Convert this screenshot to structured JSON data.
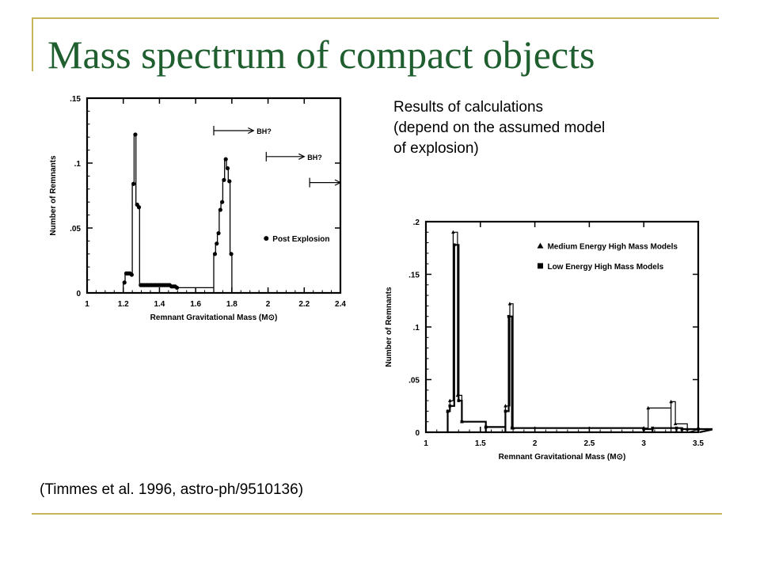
{
  "slide": {
    "title": "Mass spectrum of compact objects",
    "notes": [
      "Results of calculations",
      "(depend on the assumed model",
      "of explosion)"
    ],
    "citation": "(Timmes et al. 1996, astro-ph/9510136)",
    "accent_color": "#c8b45a",
    "title_color": "#1f5e2e"
  },
  "chart_data": [
    {
      "type": "line",
      "xlabel": "Remnant  Gravitational  Mass  (M⊙)",
      "ylabel": "Number of Remnants",
      "xlim": [
        1,
        2.4
      ],
      "ylim": [
        0,
        0.15
      ],
      "xticks": [
        "1",
        "1.2",
        "1.4",
        "1.6",
        "1.8",
        "2",
        "2.2",
        "2.4"
      ],
      "yticks": [
        "0",
        ".05",
        ".1",
        ".15"
      ],
      "legend": [
        {
          "label": "Post Explosion",
          "marker": "circle"
        }
      ],
      "annotations": [
        {
          "text": "BH?",
          "x_start": 1.7,
          "x_end": 1.92,
          "y": 0.125
        },
        {
          "text": "BH?",
          "x_start": 1.99,
          "x_end": 2.2,
          "y": 0.105
        },
        {
          "text": "",
          "x_start": 2.23,
          "x_end": 2.4,
          "y": 0.085
        }
      ],
      "series": [
        {
          "x": [
            1.2,
            1.21,
            1.22,
            1.23,
            1.24,
            1.25,
            1.26,
            1.27,
            1.28,
            1.29,
            1.3,
            1.31,
            1.32,
            1.33,
            1.34,
            1.35,
            1.36,
            1.37,
            1.38,
            1.39,
            1.4,
            1.41,
            1.42,
            1.43,
            1.44,
            1.45,
            1.46,
            1.47,
            1.48,
            1.49,
            1.7,
            1.71,
            1.72,
            1.73,
            1.74,
            1.75,
            1.76,
            1.77,
            1.78,
            1.79
          ],
          "y": [
            0.008,
            0.015,
            0.015,
            0.015,
            0.014,
            0.084,
            0.122,
            0.068,
            0.066,
            0.006,
            0.006,
            0.006,
            0.006,
            0.006,
            0.006,
            0.006,
            0.006,
            0.006,
            0.006,
            0.006,
            0.006,
            0.006,
            0.006,
            0.006,
            0.006,
            0.006,
            0.005,
            0.005,
            0.005,
            0.004,
            0.03,
            0.038,
            0.046,
            0.064,
            0.07,
            0.087,
            0.103,
            0.096,
            0.086,
            0.03
          ]
        }
      ]
    },
    {
      "type": "line",
      "xlabel": "Remnant  Gravitational  Mass  (M⊙)",
      "ylabel": "Number of Remnants",
      "xlim": [
        1,
        3.5
      ],
      "ylim": [
        0,
        0.2
      ],
      "xticks": [
        "1",
        "1.5",
        "2",
        "2.5",
        "3",
        "3.5"
      ],
      "yticks": [
        "0",
        ".05",
        ".1",
        ".15",
        ".2"
      ],
      "legend": [
        {
          "label": "Medium Energy High Mass Models",
          "marker": "triangle"
        },
        {
          "label": "Low Energy High Mass Models",
          "marker": "square"
        }
      ],
      "series": [
        {
          "name": "Medium Energy High Mass Models",
          "x": [
            1.2,
            1.22,
            1.25,
            1.29,
            1.33,
            1.55,
            1.73,
            1.77,
            1.8,
            3.0,
            3.04,
            3.25,
            3.29,
            3.4
          ],
          "y": [
            0.02,
            0.03,
            0.19,
            0.035,
            0.01,
            0.005,
            0.025,
            0.122,
            0.004,
            0.004,
            0.023,
            0.029,
            0.008,
            0.003
          ]
        },
        {
          "name": "Low Energy High Mass Models",
          "x": [
            1.2,
            1.22,
            1.26,
            1.3,
            1.33,
            1.55,
            1.73,
            1.76,
            1.79,
            3.0,
            3.08,
            3.3,
            3.35,
            3.5
          ],
          "y": [
            0.02,
            0.025,
            0.178,
            0.03,
            0.01,
            0.005,
            0.02,
            0.11,
            0.004,
            0.003,
            0.004,
            0.004,
            0.003,
            0.003
          ]
        }
      ]
    }
  ]
}
